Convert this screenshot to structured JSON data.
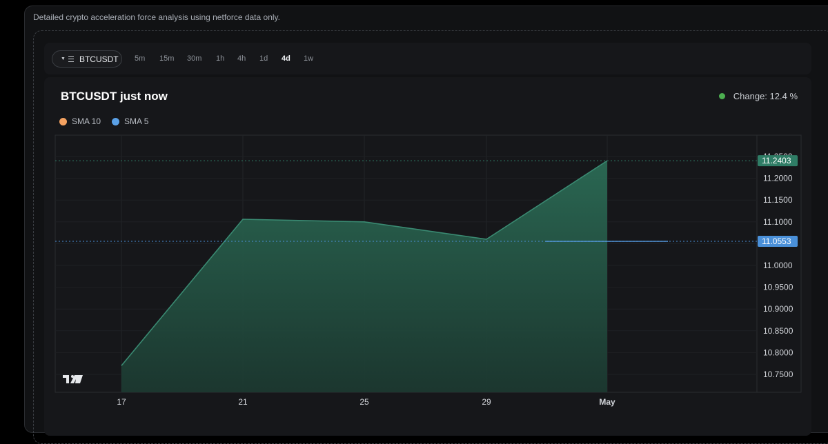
{
  "page": {
    "subtitle": "Detailed crypto acceleration force analysis using netforce data only."
  },
  "toolbar": {
    "symbol": "BTCUSDT",
    "timeframes": [
      "5m",
      "15m",
      "30m",
      "1h",
      "4h",
      "1d",
      "4d",
      "1w"
    ],
    "active_timeframe": "4d"
  },
  "chart_header": {
    "title": "BTCUSDT just now",
    "change_label": "Change: 12.4 %",
    "change_color": "#4caf50"
  },
  "legend": [
    {
      "name": "SMA 10",
      "color": "#f4a261"
    },
    {
      "name": "SMA 5",
      "color": "#5aa0e6"
    }
  ],
  "chart_data": {
    "type": "area",
    "x": [
      "17",
      "21",
      "25",
      "29",
      "May"
    ],
    "series": [
      {
        "values": [
          10.77,
          11.106,
          11.1,
          11.06,
          11.2403
        ],
        "color": "#3a8a72"
      },
      {
        "name": "SMA 5",
        "values": [
          null,
          null,
          null,
          11.0553,
          11.0553
        ],
        "color": "#5aa0e6"
      }
    ],
    "x_ticks": [
      "17",
      "21",
      "25",
      "29",
      "May"
    ],
    "y_ticks": [
      "11.2500",
      "11.2000",
      "11.1500",
      "11.1000",
      "11.0500",
      "11.0000",
      "10.9500",
      "10.9000",
      "10.8500",
      "10.8000",
      "10.7500"
    ],
    "ylim": [
      10.75,
      11.25
    ],
    "price_lines": [
      {
        "value": 11.2403,
        "label": "11.2403",
        "color": "#2f7d66"
      },
      {
        "value": 11.0553,
        "label": "11.0553",
        "color": "#4a90d9"
      }
    ],
    "grid": true
  }
}
